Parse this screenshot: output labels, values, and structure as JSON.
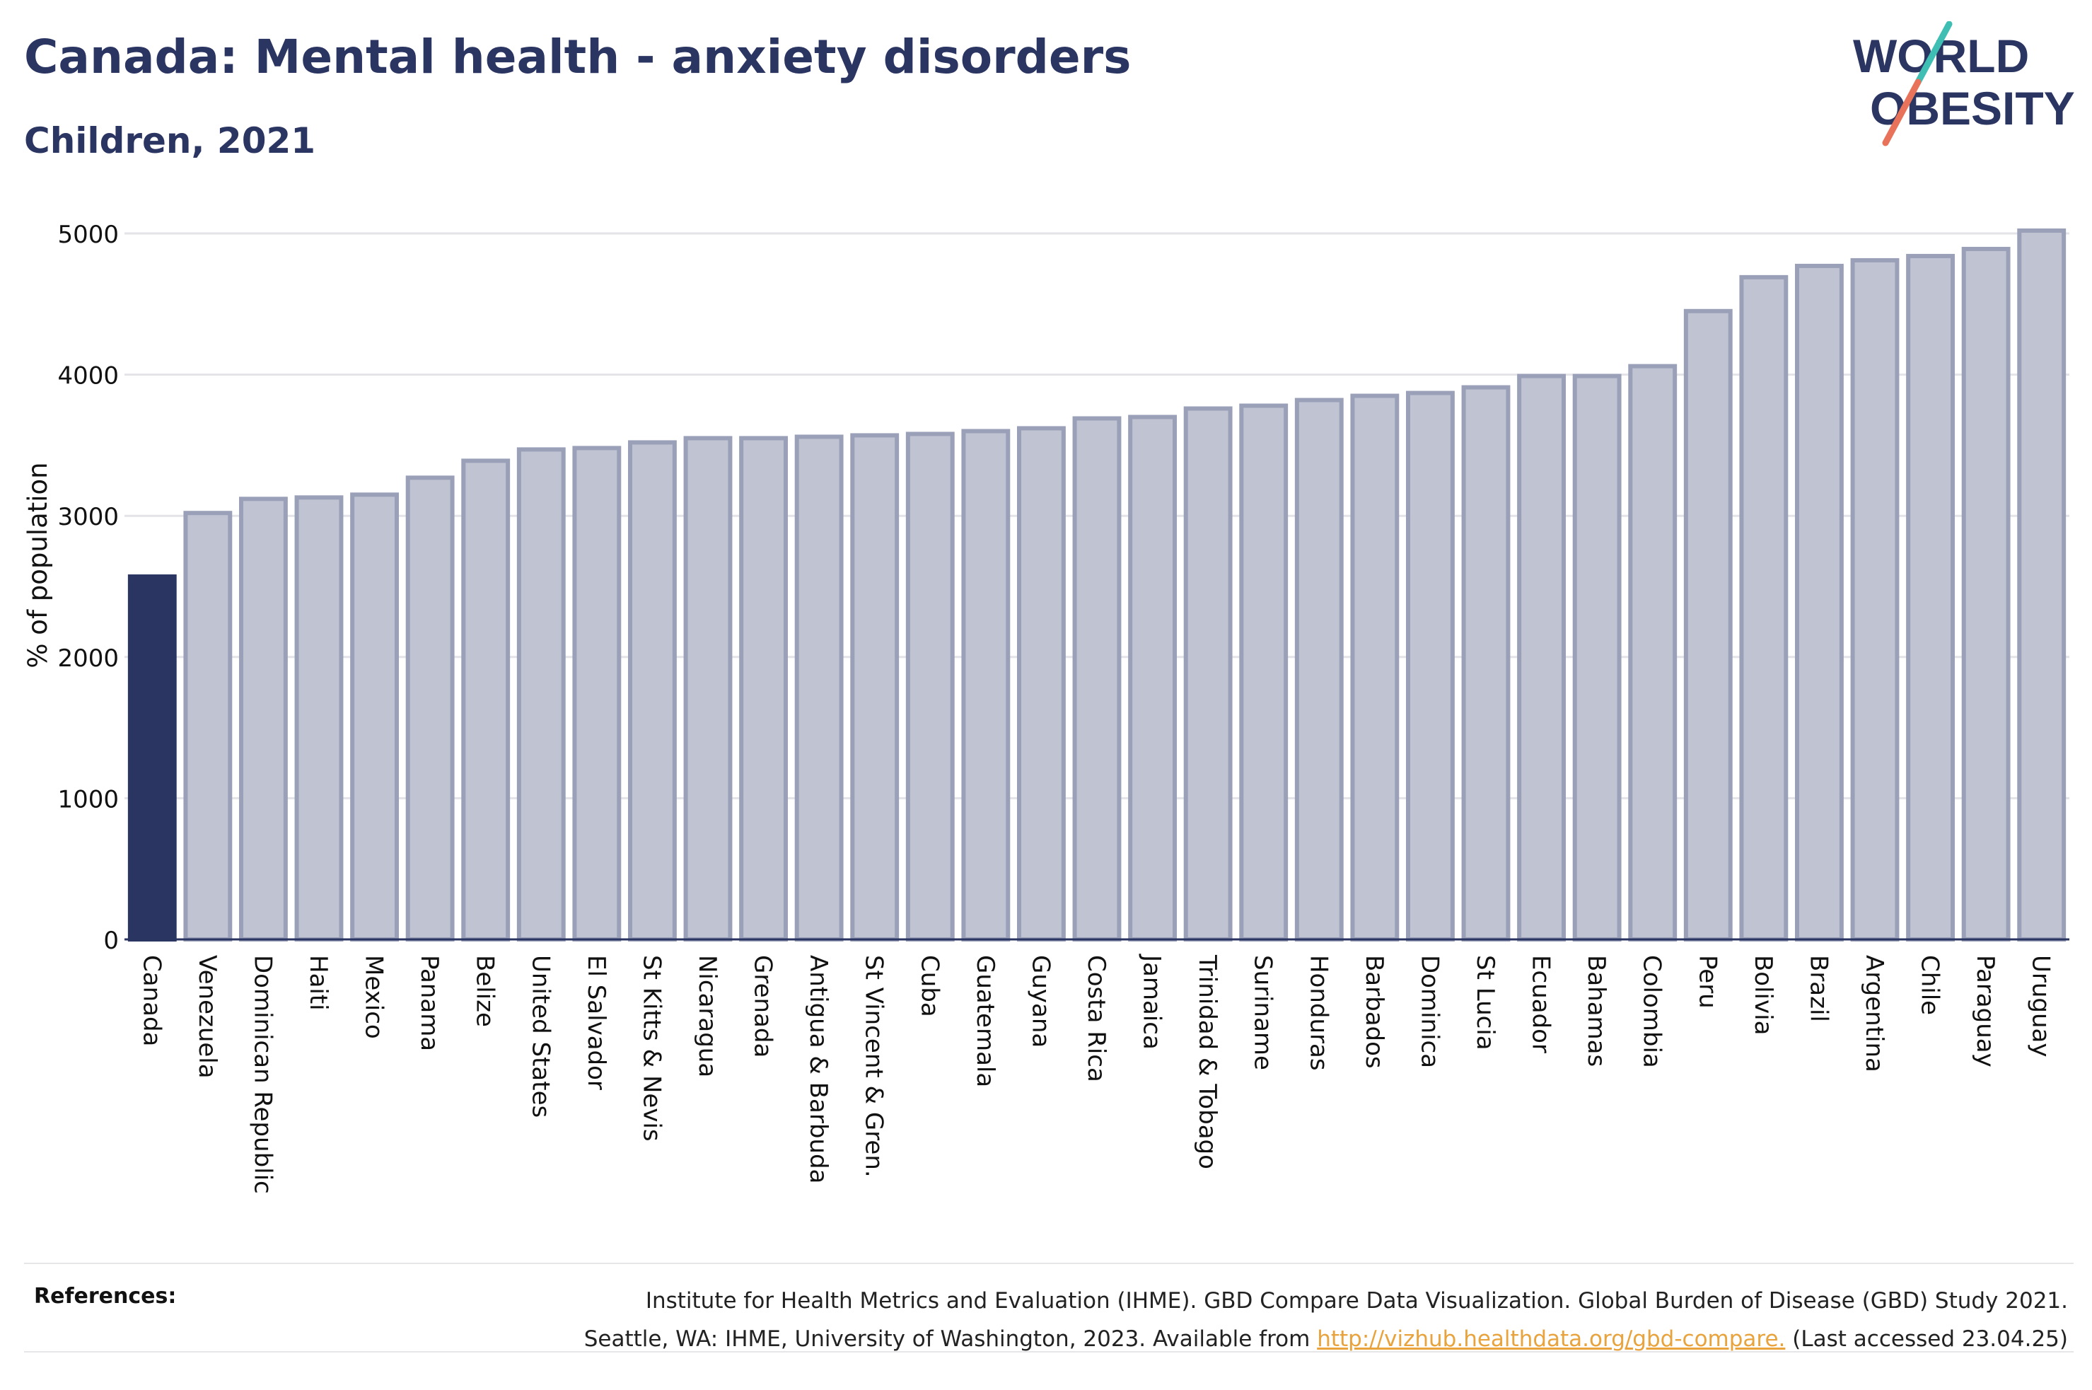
{
  "header": {
    "title": "Canada: Mental health - anxiety disorders",
    "subtitle": "Children, 2021"
  },
  "logo": {
    "line1": "WORLD",
    "line2": "OBESITY",
    "accent_colors": [
      "#3fbfb4",
      "#e8735a"
    ]
  },
  "chart_data": {
    "type": "bar",
    "title": "Canada: Mental health - anxiety disorders",
    "subtitle": "Children, 2021",
    "xlabel": "",
    "ylabel": "% of population",
    "ylim": [
      0,
      5000
    ],
    "yticks": [
      0,
      1000,
      2000,
      3000,
      4000,
      5000
    ],
    "grid": true,
    "categories": [
      "Canada",
      "Venezuela",
      "Dominican Republic",
      "Haiti",
      "Mexico",
      "Panama",
      "Belize",
      "United States",
      "El Salvador",
      "St Kitts & Nevis",
      "Nicaragua",
      "Grenada",
      "Antigua & Barbuda",
      "St Vincent & Gren.",
      "Cuba",
      "Guatemala",
      "Guyana",
      "Costa Rica",
      "Jamaica",
      "Trinidad & Tobago",
      "Suriname",
      "Honduras",
      "Barbados",
      "Dominica",
      "St Lucia",
      "Ecuador",
      "Bahamas",
      "Colombia",
      "Peru",
      "Bolivia",
      "Brazil",
      "Argentina",
      "Chile",
      "Paraguay",
      "Uruguay"
    ],
    "values": [
      2570,
      3020,
      3120,
      3130,
      3150,
      3270,
      3390,
      3470,
      3480,
      3520,
      3550,
      3550,
      3560,
      3570,
      3580,
      3600,
      3620,
      3690,
      3700,
      3760,
      3780,
      3820,
      3850,
      3870,
      3910,
      3990,
      3990,
      4060,
      4450,
      4690,
      4770,
      4810,
      4840,
      4890,
      5020
    ],
    "highlight": "Canada",
    "colors": {
      "highlight": "#2b3562",
      "bar_fill": "#c0c3d1",
      "bar_edge": "#9aa0b8",
      "grid": "#e3e3e8"
    }
  },
  "references": {
    "label": "References:",
    "line1": "Institute for Health Metrics and Evaluation (IHME). GBD Compare Data Visualization. Global Burden of Disease (GBD) Study 2021.",
    "line2_pre": "Seattle, WA: IHME, University of Washington, 2023. Available from",
    "link": "http://vizhub.healthdata.org/gbd-compare.",
    "line2_post": "(Last accessed 23.04.25)"
  }
}
